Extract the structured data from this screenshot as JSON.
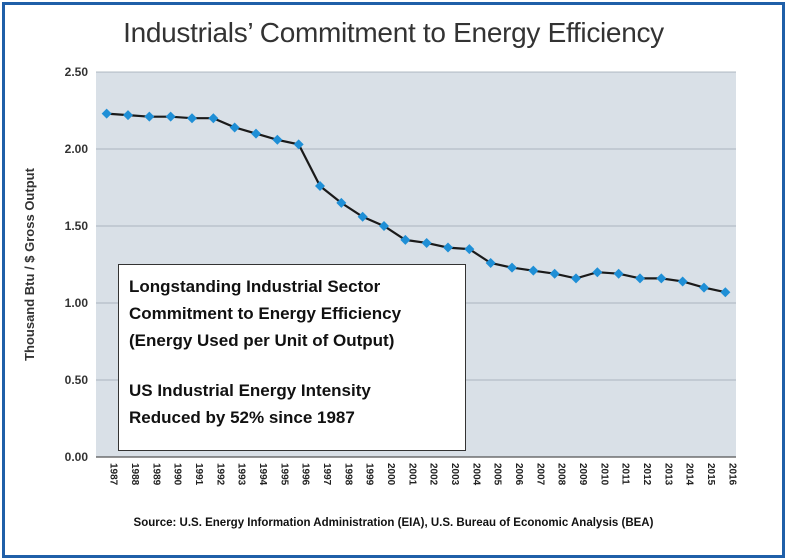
{
  "chart_data": {
    "type": "line",
    "title": "Industrials’ Commitment to Energy Efficiency",
    "ylabel": "Thousand Btu / $ Gross Output",
    "source": "Source: U.S. Energy Information Administration (EIA), U.S. Bureau of Economic Analysis (BEA)",
    "ylim": [
      0,
      2.5
    ],
    "yticks": [
      "0.00",
      "0.50",
      "1.00",
      "1.50",
      "2.00",
      "2.50"
    ],
    "grid": true,
    "series_color": "#1a1a1a",
    "marker_color": "#1f8fd6",
    "plot_background": "#d9e0e7",
    "x": [
      "1987",
      "1988",
      "1989",
      "1990",
      "1991",
      "1992",
      "1993",
      "1994",
      "1995",
      "1996",
      "1997",
      "1998",
      "1999",
      "2000",
      "2001",
      "2002",
      "2003",
      "2004",
      "2005",
      "2006",
      "2007",
      "2008",
      "2009",
      "2010",
      "2011",
      "2012",
      "2013",
      "2014",
      "2015",
      "2016"
    ],
    "series": [
      {
        "values": [
          2.23,
          2.22,
          2.21,
          2.21,
          2.2,
          2.2,
          2.14,
          2.1,
          2.06,
          2.03,
          1.76,
          1.65,
          1.56,
          1.5,
          1.41,
          1.39,
          1.36,
          1.35,
          1.26,
          1.23,
          1.21,
          1.19,
          1.16,
          1.2,
          1.19,
          1.16,
          1.16,
          1.14,
          1.1,
          1.07
        ]
      }
    ],
    "annotation": {
      "lines_1": [
        "Longstanding Industrial Sector",
        "Commitment to Energy Efficiency",
        "(Energy Used per Unit of Output)"
      ],
      "lines_2": [
        "US Industrial Energy Intensity",
        "Reduced by 52% since 1987"
      ]
    }
  }
}
